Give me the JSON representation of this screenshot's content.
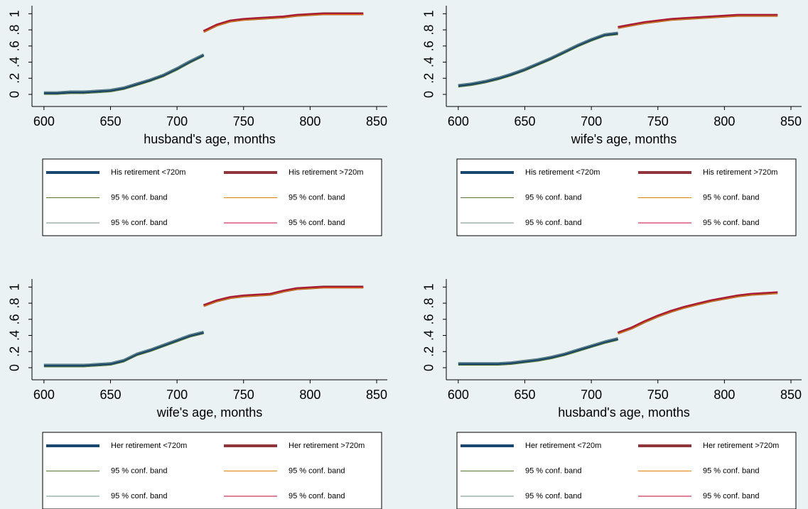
{
  "chart_data": [
    {
      "type": "line",
      "x_label": "husband's age, months",
      "x": [
        600,
        610,
        620,
        630,
        640,
        650,
        660,
        670,
        680,
        690,
        700,
        710,
        720,
        730,
        740,
        750,
        760,
        770,
        780,
        790,
        800,
        810,
        820,
        830,
        840
      ],
      "xlim": [
        591,
        858
      ],
      "xticks": [
        600,
        650,
        700,
        750,
        800,
        850
      ],
      "ylim": [
        -0.15,
        1.1
      ],
      "yticks": [
        0,
        {
          "value": 0.2,
          "label": ".2"
        },
        {
          "value": 0.4,
          "label": ".4"
        },
        {
          "value": 0.6,
          "label": ".6"
        },
        {
          "value": 0.8,
          "label": ".8"
        },
        1
      ],
      "legend_columns": 2,
      "series": [
        {
          "name": "His retirement <720m",
          "color": "#1a476f",
          "width": 4,
          "values": [
            0.02,
            0.02,
            0.03,
            0.03,
            0.04,
            0.05,
            0.08,
            0.13,
            0.18,
            0.24,
            0.32,
            0.41,
            0.49,
            null,
            null,
            null,
            null,
            null,
            null,
            null,
            null,
            null,
            null,
            null,
            null
          ]
        },
        {
          "name": "His retirement >720m",
          "color": "#90353b",
          "width": 4,
          "values": [
            null,
            null,
            null,
            null,
            null,
            null,
            null,
            null,
            null,
            null,
            null,
            null,
            0.78,
            0.86,
            0.91,
            0.93,
            0.94,
            0.95,
            0.96,
            0.98,
            0.99,
            1.0,
            1.0,
            1.0,
            1.0
          ]
        },
        {
          "name": "95 % conf. band",
          "color": "#55752f",
          "width": 1,
          "values": [
            0.0,
            0.0,
            0.01,
            0.01,
            0.02,
            0.03,
            0.06,
            0.11,
            0.16,
            0.22,
            0.3,
            0.39,
            0.47,
            null,
            null,
            null,
            null,
            null,
            null,
            null,
            null,
            null,
            null,
            null,
            null
          ]
        },
        {
          "name": "95 % conf. band",
          "color": "#e37e00",
          "width": 1,
          "values": [
            null,
            null,
            null,
            null,
            null,
            null,
            null,
            null,
            null,
            null,
            null,
            null,
            0.77,
            0.85,
            0.9,
            0.92,
            0.93,
            0.94,
            0.95,
            0.97,
            0.98,
            0.99,
            0.99,
            0.99,
            0.99
          ]
        },
        {
          "name": "95 % conf. band",
          "color": "#6e8e84",
          "width": 1,
          "values": [
            0.03,
            0.03,
            0.04,
            0.04,
            0.05,
            0.06,
            0.09,
            0.14,
            0.19,
            0.25,
            0.33,
            0.42,
            0.5,
            null,
            null,
            null,
            null,
            null,
            null,
            null,
            null,
            null,
            null,
            null,
            null
          ]
        },
        {
          "name": "95 % conf. band",
          "color": "#c10534",
          "width": 1,
          "values": [
            null,
            null,
            null,
            null,
            null,
            null,
            null,
            null,
            null,
            null,
            null,
            null,
            0.79,
            0.87,
            0.92,
            0.94,
            0.95,
            0.96,
            0.97,
            0.99,
            1.0,
            1.0,
            1.0,
            1.0,
            1.0
          ]
        }
      ]
    },
    {
      "type": "line",
      "x_label": "wife's age, months",
      "x": [
        600,
        610,
        620,
        630,
        640,
        650,
        660,
        670,
        680,
        690,
        700,
        710,
        720,
        730,
        740,
        750,
        760,
        770,
        780,
        790,
        800,
        810,
        820,
        830,
        840
      ],
      "xlim": [
        591,
        858
      ],
      "xticks": [
        600,
        650,
        700,
        750,
        800,
        850
      ],
      "ylim": [
        -0.15,
        1.1
      ],
      "yticks": [
        0,
        {
          "value": 0.2,
          "label": ".2"
        },
        {
          "value": 0.4,
          "label": ".4"
        },
        {
          "value": 0.6,
          "label": ".6"
        },
        {
          "value": 0.8,
          "label": ".8"
        },
        1
      ],
      "legend_columns": 2,
      "series": [
        {
          "name": "His retirement <720m",
          "color": "#1a476f",
          "width": 4,
          "values": [
            0.11,
            0.13,
            0.16,
            0.2,
            0.25,
            0.31,
            0.38,
            0.45,
            0.53,
            0.61,
            0.68,
            0.74,
            0.76,
            null,
            null,
            null,
            null,
            null,
            null,
            null,
            null,
            null,
            null,
            null,
            null
          ]
        },
        {
          "name": "His retirement >720m",
          "color": "#90353b",
          "width": 4,
          "values": [
            null,
            null,
            null,
            null,
            null,
            null,
            null,
            null,
            null,
            null,
            null,
            null,
            0.83,
            0.86,
            0.89,
            0.91,
            0.93,
            0.94,
            0.95,
            0.96,
            0.97,
            0.98,
            0.98,
            0.98,
            0.98
          ]
        },
        {
          "name": "95 % conf. band",
          "color": "#55752f",
          "width": 1,
          "values": [
            0.09,
            0.11,
            0.14,
            0.18,
            0.23,
            0.29,
            0.36,
            0.43,
            0.51,
            0.59,
            0.66,
            0.72,
            0.74,
            null,
            null,
            null,
            null,
            null,
            null,
            null,
            null,
            null,
            null,
            null,
            null
          ]
        },
        {
          "name": "95 % conf. band",
          "color": "#e37e00",
          "width": 1,
          "values": [
            null,
            null,
            null,
            null,
            null,
            null,
            null,
            null,
            null,
            null,
            null,
            null,
            0.82,
            0.85,
            0.88,
            0.9,
            0.92,
            0.93,
            0.94,
            0.95,
            0.96,
            0.97,
            0.97,
            0.97,
            0.97
          ]
        },
        {
          "name": "95 % conf. band",
          "color": "#6e8e84",
          "width": 1,
          "values": [
            0.12,
            0.14,
            0.17,
            0.21,
            0.26,
            0.32,
            0.39,
            0.46,
            0.54,
            0.62,
            0.69,
            0.75,
            0.77,
            null,
            null,
            null,
            null,
            null,
            null,
            null,
            null,
            null,
            null,
            null,
            null
          ]
        },
        {
          "name": "95 % conf. band",
          "color": "#c10534",
          "width": 1,
          "values": [
            null,
            null,
            null,
            null,
            null,
            null,
            null,
            null,
            null,
            null,
            null,
            null,
            0.84,
            0.87,
            0.9,
            0.92,
            0.94,
            0.95,
            0.96,
            0.97,
            0.98,
            0.99,
            0.99,
            0.99,
            0.99
          ]
        }
      ]
    },
    {
      "type": "line",
      "x_label": "wife's age, months",
      "x": [
        600,
        610,
        620,
        630,
        640,
        650,
        660,
        670,
        680,
        690,
        700,
        710,
        720,
        730,
        740,
        750,
        760,
        770,
        780,
        790,
        800,
        810,
        820,
        830,
        840
      ],
      "xlim": [
        591,
        858
      ],
      "xticks": [
        600,
        650,
        700,
        750,
        800,
        850
      ],
      "ylim": [
        -0.15,
        1.1
      ],
      "yticks": [
        0,
        {
          "value": 0.2,
          "label": ".2"
        },
        {
          "value": 0.4,
          "label": ".4"
        },
        {
          "value": 0.6,
          "label": ".6"
        },
        {
          "value": 0.8,
          "label": ".8"
        },
        1
      ],
      "legend_columns": 2,
      "series": [
        {
          "name": "Her retirement <720m",
          "color": "#1a476f",
          "width": 4,
          "values": [
            0.03,
            0.03,
            0.03,
            0.03,
            0.04,
            0.05,
            0.09,
            0.17,
            0.22,
            0.28,
            0.34,
            0.4,
            0.44,
            null,
            null,
            null,
            null,
            null,
            null,
            null,
            null,
            null,
            null,
            null,
            null
          ]
        },
        {
          "name": "Her retirement >720m",
          "color": "#90353b",
          "width": 4,
          "values": [
            null,
            null,
            null,
            null,
            null,
            null,
            null,
            null,
            null,
            null,
            null,
            null,
            0.77,
            0.83,
            0.87,
            0.89,
            0.9,
            0.91,
            0.95,
            0.98,
            0.99,
            1.0,
            1.0,
            1.0,
            1.0
          ]
        },
        {
          "name": "95 % conf. band",
          "color": "#55752f",
          "width": 1,
          "values": [
            0.01,
            0.01,
            0.01,
            0.01,
            0.02,
            0.03,
            0.07,
            0.15,
            0.2,
            0.26,
            0.32,
            0.38,
            0.42,
            null,
            null,
            null,
            null,
            null,
            null,
            null,
            null,
            null,
            null,
            null,
            null
          ]
        },
        {
          "name": "95 % conf. band",
          "color": "#e37e00",
          "width": 1,
          "values": [
            null,
            null,
            null,
            null,
            null,
            null,
            null,
            null,
            null,
            null,
            null,
            null,
            0.76,
            0.82,
            0.86,
            0.88,
            0.89,
            0.9,
            0.94,
            0.97,
            0.98,
            0.99,
            0.99,
            0.99,
            0.99
          ]
        },
        {
          "name": "95 % conf. band",
          "color": "#6e8e84",
          "width": 1,
          "values": [
            0.04,
            0.04,
            0.04,
            0.04,
            0.05,
            0.06,
            0.1,
            0.18,
            0.23,
            0.29,
            0.35,
            0.41,
            0.45,
            null,
            null,
            null,
            null,
            null,
            null,
            null,
            null,
            null,
            null,
            null,
            null
          ]
        },
        {
          "name": "95 % conf. band",
          "color": "#c10534",
          "width": 1,
          "values": [
            null,
            null,
            null,
            null,
            null,
            null,
            null,
            null,
            null,
            null,
            null,
            null,
            0.78,
            0.84,
            0.88,
            0.9,
            0.91,
            0.92,
            0.96,
            0.99,
            1.0,
            1.0,
            1.0,
            1.0,
            1.0
          ]
        }
      ]
    },
    {
      "type": "line",
      "x_label": "husband's age, months",
      "x": [
        600,
        610,
        620,
        630,
        640,
        650,
        660,
        670,
        680,
        690,
        700,
        710,
        720,
        730,
        740,
        750,
        760,
        770,
        780,
        790,
        800,
        810,
        820,
        830,
        840
      ],
      "xlim": [
        591,
        858
      ],
      "xticks": [
        600,
        650,
        700,
        750,
        800,
        850
      ],
      "ylim": [
        -0.15,
        1.1
      ],
      "yticks": [
        0,
        {
          "value": 0.2,
          "label": ".2"
        },
        {
          "value": 0.4,
          "label": ".4"
        },
        {
          "value": 0.6,
          "label": ".6"
        },
        {
          "value": 0.8,
          "label": ".8"
        },
        1
      ],
      "legend_columns": 2,
      "series": [
        {
          "name": "Her retirement <720m",
          "color": "#1a476f",
          "width": 4,
          "values": [
            0.05,
            0.05,
            0.05,
            0.05,
            0.06,
            0.08,
            0.1,
            0.13,
            0.17,
            0.22,
            0.27,
            0.32,
            0.36,
            null,
            null,
            null,
            null,
            null,
            null,
            null,
            null,
            null,
            null,
            null,
            null
          ]
        },
        {
          "name": "Her retirement >720m",
          "color": "#90353b",
          "width": 4,
          "values": [
            null,
            null,
            null,
            null,
            null,
            null,
            null,
            null,
            null,
            null,
            null,
            null,
            0.43,
            0.49,
            0.57,
            0.64,
            0.7,
            0.75,
            0.79,
            0.83,
            0.86,
            0.89,
            0.91,
            0.92,
            0.93
          ]
        },
        {
          "name": "95 % conf. band",
          "color": "#55752f",
          "width": 1,
          "values": [
            0.03,
            0.03,
            0.03,
            0.03,
            0.04,
            0.06,
            0.08,
            0.11,
            0.15,
            0.2,
            0.25,
            0.3,
            0.34,
            null,
            null,
            null,
            null,
            null,
            null,
            null,
            null,
            null,
            null,
            null,
            null
          ]
        },
        {
          "name": "95 % conf. band",
          "color": "#e37e00",
          "width": 1,
          "values": [
            null,
            null,
            null,
            null,
            null,
            null,
            null,
            null,
            null,
            null,
            null,
            null,
            0.42,
            0.48,
            0.56,
            0.63,
            0.69,
            0.74,
            0.78,
            0.82,
            0.85,
            0.88,
            0.9,
            0.91,
            0.92
          ]
        },
        {
          "name": "95 % conf. band",
          "color": "#6e8e84",
          "width": 1,
          "values": [
            0.06,
            0.06,
            0.06,
            0.06,
            0.07,
            0.09,
            0.11,
            0.14,
            0.18,
            0.23,
            0.28,
            0.33,
            0.37,
            null,
            null,
            null,
            null,
            null,
            null,
            null,
            null,
            null,
            null,
            null,
            null
          ]
        },
        {
          "name": "95 % conf. band",
          "color": "#c10534",
          "width": 1,
          "values": [
            null,
            null,
            null,
            null,
            null,
            null,
            null,
            null,
            null,
            null,
            null,
            null,
            0.44,
            0.5,
            0.58,
            0.65,
            0.71,
            0.76,
            0.8,
            0.84,
            0.87,
            0.9,
            0.92,
            0.93,
            0.94
          ]
        }
      ]
    }
  ]
}
